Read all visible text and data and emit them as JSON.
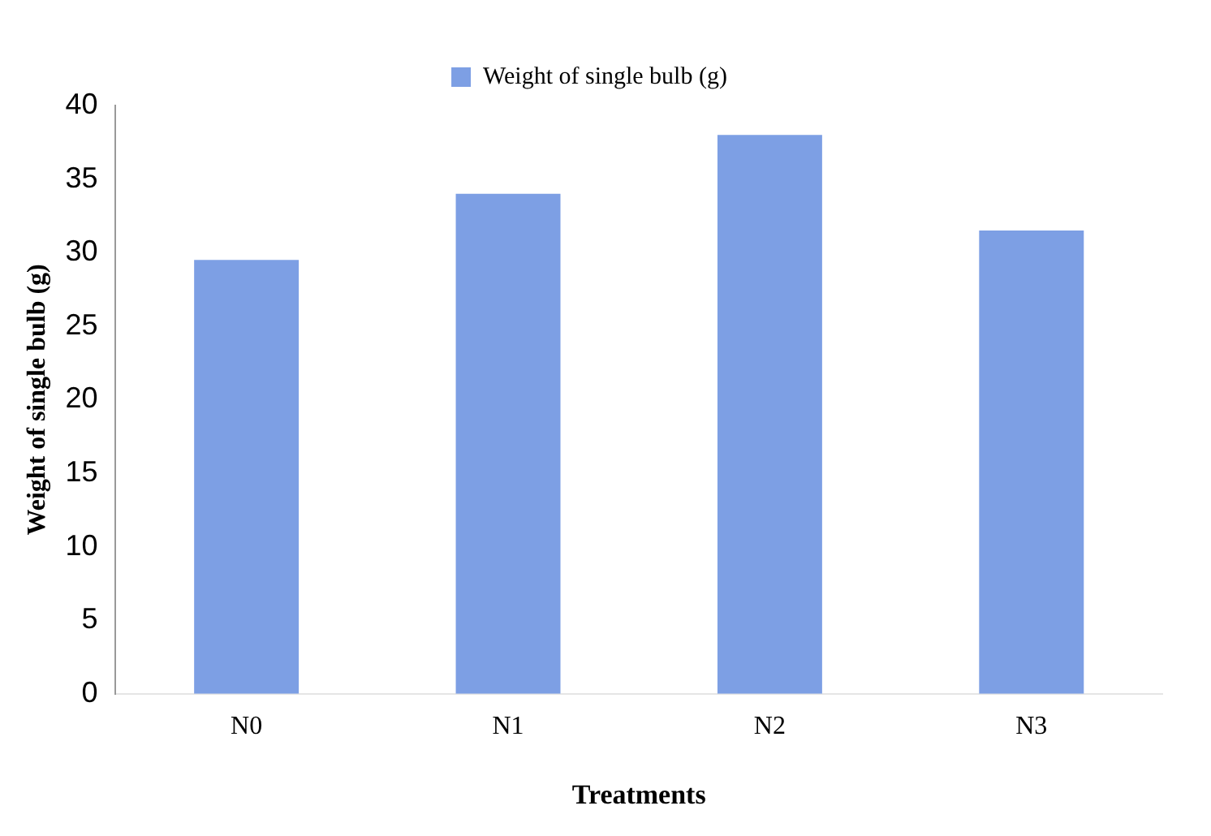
{
  "chart_data": {
    "type": "bar",
    "xlabel": "Treatments",
    "ylabel": "Weight of single bulb (g)",
    "categories": [
      "N0",
      "N1",
      "N2",
      "N3"
    ],
    "series": [
      {
        "name": "Weight of single bulb (g)",
        "color": "#7d9fe4",
        "values": [
          29.5,
          34,
          38,
          31.5
        ]
      }
    ],
    "ylim": [
      0,
      40
    ],
    "yticks": [
      0,
      5,
      10,
      15,
      20,
      25,
      30,
      35,
      40
    ],
    "grid": false,
    "legend": "top"
  }
}
